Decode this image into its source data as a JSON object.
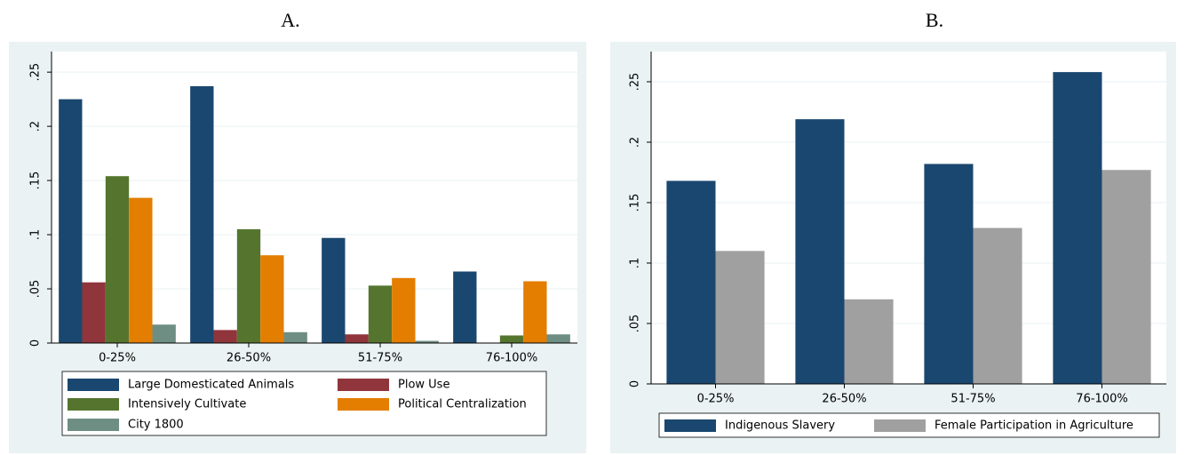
{
  "chart_data": [
    {
      "type": "bar",
      "title": "A.",
      "categories": [
        "0-25%",
        "26-50%",
        "51-75%",
        "76-100%"
      ],
      "series": [
        {
          "name": "Large Domesticated Animals",
          "color": "#1a476f",
          "values": [
            0.225,
            0.237,
            0.097,
            0.066
          ]
        },
        {
          "name": "Plow Use",
          "color": "#90353b",
          "values": [
            0.056,
            0.012,
            0.008,
            0
          ]
        },
        {
          "name": "Intensively Cultivate",
          "color": "#55752f",
          "values": [
            0.154,
            0.105,
            0.053,
            0.007
          ]
        },
        {
          "name": "Political Centralization",
          "color": "#e37e00",
          "values": [
            0.134,
            0.081,
            0.06,
            0.057
          ]
        },
        {
          "name": "City 1800",
          "color": "#6e8e84",
          "values": [
            0.017,
            0.01,
            0.002,
            0.008
          ]
        }
      ],
      "ylim": [
        0,
        0.269
      ],
      "yticks": [
        0,
        {
          "value": 0.05,
          "label": ".05"
        },
        {
          "value": 0.1,
          "label": ".1"
        },
        {
          "value": 0.15,
          "label": ".15"
        },
        {
          "value": 0.2,
          "label": ".2"
        },
        {
          "value": 0.25,
          "label": ".25"
        }
      ],
      "grid": true
    },
    {
      "type": "bar",
      "title": "B.",
      "categories": [
        "0-25%",
        "26-50%",
        "51-75%",
        "76-100%"
      ],
      "series": [
        {
          "name": "Indigenous Slavery",
          "color": "#1a476f",
          "values": [
            0.168,
            0.219,
            0.182,
            0.258
          ]
        },
        {
          "name": "Female Participation in Agriculture",
          "color": "#a0a0a0",
          "values": [
            0.11,
            0.07,
            0.129,
            0.177
          ]
        }
      ],
      "ylim": [
        0,
        0.275
      ],
      "yticks": [
        0,
        {
          "value": 0.05,
          "label": ".05"
        },
        {
          "value": 0.1,
          "label": ".1"
        },
        {
          "value": 0.15,
          "label": ".15"
        },
        {
          "value": 0.2,
          "label": ".2"
        },
        {
          "value": 0.25,
          "label": ".25"
        }
      ],
      "grid": true
    }
  ]
}
